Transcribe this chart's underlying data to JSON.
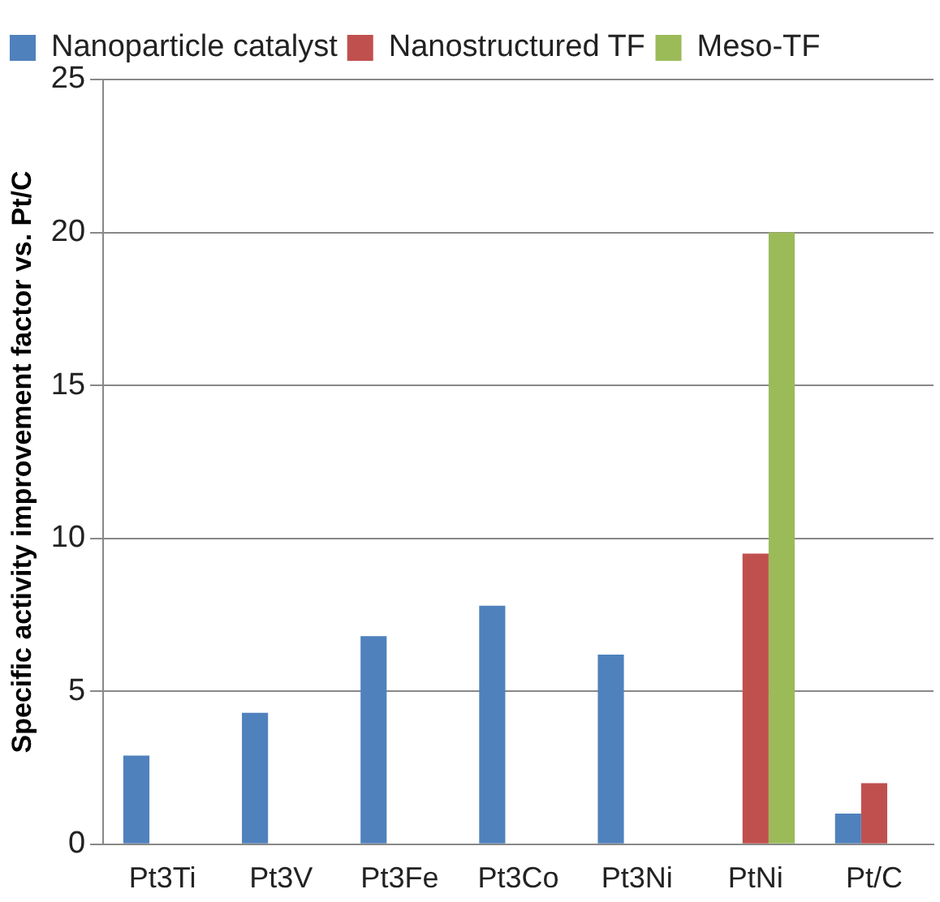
{
  "chart_data": {
    "type": "bar",
    "ylabel": "Specific activity improvement factor vs. Pt/C",
    "categories": [
      "Pt3Ti",
      "Pt3V",
      "Pt3Fe",
      "Pt3Co",
      "Pt3Ni",
      "PtNi",
      "Pt/C"
    ],
    "series": [
      {
        "name": "Nanoparticle catalyst",
        "color": "#4f81bd",
        "values": [
          2.9,
          4.3,
          6.8,
          7.8,
          6.2,
          null,
          1
        ]
      },
      {
        "name": "Nanostructured TF",
        "color": "#c0504d",
        "values": [
          null,
          null,
          null,
          null,
          null,
          9.5,
          2
        ]
      },
      {
        "name": "Meso-TF",
        "color": "#9bbb59",
        "values": [
          null,
          null,
          null,
          null,
          null,
          20,
          null
        ]
      }
    ],
    "ylim": [
      0,
      25
    ],
    "yticks": [
      0,
      5,
      10,
      15,
      20,
      25
    ],
    "grid": "y",
    "legend": "top"
  }
}
